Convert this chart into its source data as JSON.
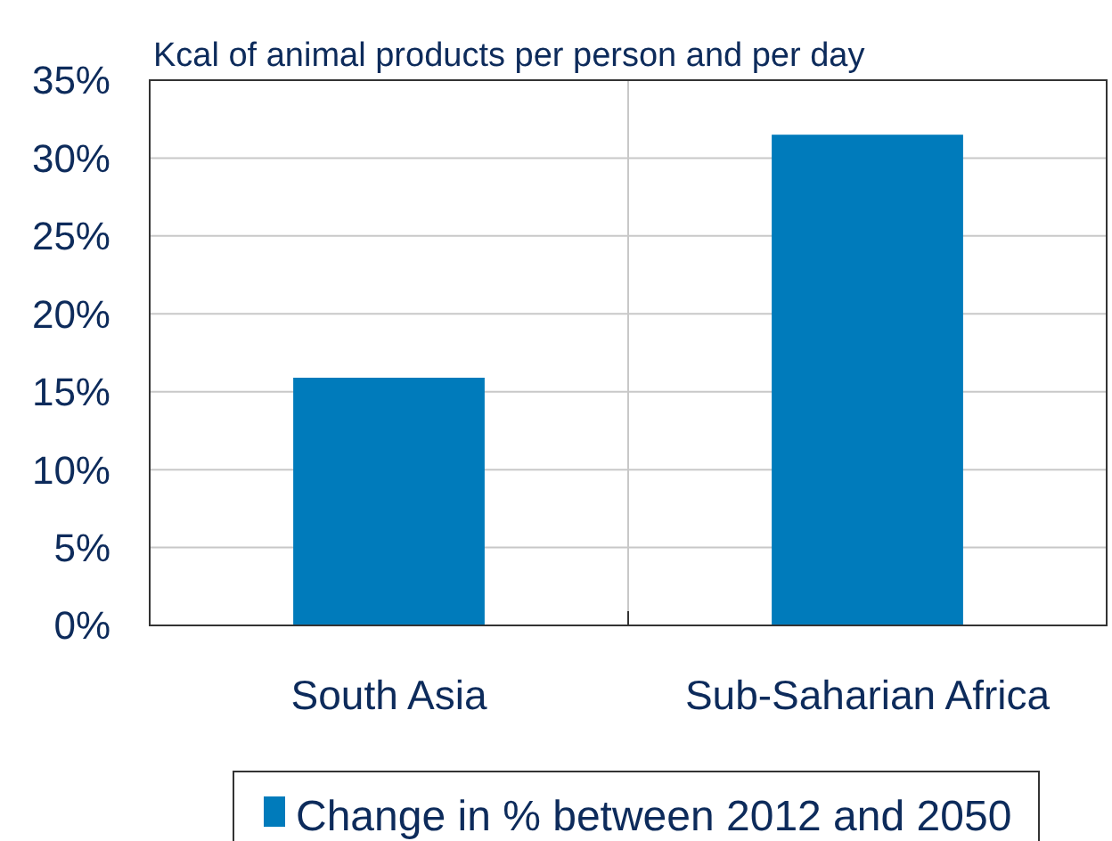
{
  "chart_data": {
    "type": "bar",
    "title": "Kcal of animal products per person and per day",
    "categories": [
      "South Asia",
      "Sub-Saharian Africa"
    ],
    "series": [
      {
        "name": "Change in % between 2012 and 2050",
        "color": "#007bbb",
        "values": [
          15.9,
          31.5
        ]
      }
    ],
    "ylim": [
      0,
      35
    ],
    "yticks": [
      {
        "value": 0,
        "label": "0%"
      },
      {
        "value": 5,
        "label": "5%"
      },
      {
        "value": 10,
        "label": "10%"
      },
      {
        "value": 15,
        "label": "15%"
      },
      {
        "value": 20,
        "label": "20%"
      },
      {
        "value": 25,
        "label": "25%"
      },
      {
        "value": 30,
        "label": "30%"
      },
      {
        "value": 35,
        "label": "35%"
      }
    ],
    "grid": true,
    "legend": "bottom"
  }
}
